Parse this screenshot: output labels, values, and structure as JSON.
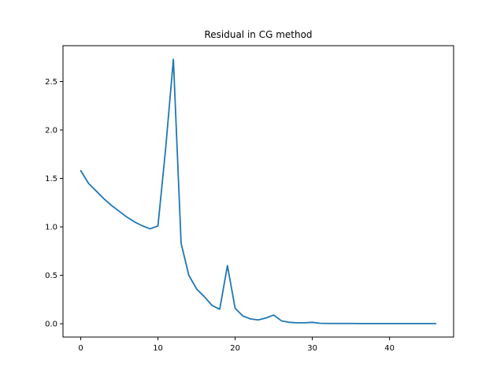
{
  "chart_data": {
    "type": "line",
    "title": "Residual in CG method",
    "xlabel": "",
    "ylabel": "",
    "xlim": [
      -2.3,
      48.3
    ],
    "ylim": [
      -0.137,
      2.87
    ],
    "xticks": [
      0,
      10,
      20,
      30,
      40
    ],
    "xtick_labels": [
      "0",
      "10",
      "20",
      "30",
      "40"
    ],
    "yticks": [
      0.0,
      0.5,
      1.0,
      1.5,
      2.0,
      2.5
    ],
    "ytick_labels": [
      "0.0",
      "0.5",
      "1.0",
      "1.5",
      "2.0",
      "2.5"
    ],
    "grid": false,
    "color": "#1f77b4",
    "series": [
      {
        "x": [
          0,
          1,
          2,
          3,
          4,
          5,
          6,
          7,
          8,
          9,
          10,
          11,
          12,
          13,
          14,
          15,
          16,
          17,
          18,
          19,
          20,
          21,
          22,
          23,
          24,
          25,
          26,
          27,
          28,
          29,
          30,
          31,
          32,
          33,
          34,
          35,
          36,
          37,
          38,
          39,
          40,
          41,
          42,
          43,
          44,
          45,
          46
        ],
        "values": [
          1.58,
          1.45,
          1.37,
          1.29,
          1.22,
          1.16,
          1.1,
          1.05,
          1.01,
          0.98,
          1.01,
          1.81,
          2.73,
          0.83,
          0.5,
          0.36,
          0.28,
          0.19,
          0.15,
          0.6,
          0.16,
          0.08,
          0.05,
          0.04,
          0.06,
          0.09,
          0.03,
          0.015,
          0.01,
          0.01,
          0.015,
          0.005,
          0.003,
          0.003,
          0.003,
          0.003,
          0.002,
          0.002,
          0.002,
          0.002,
          0.002,
          0.002,
          0.002,
          0.002,
          0.002,
          0.002,
          0.002
        ]
      }
    ]
  }
}
